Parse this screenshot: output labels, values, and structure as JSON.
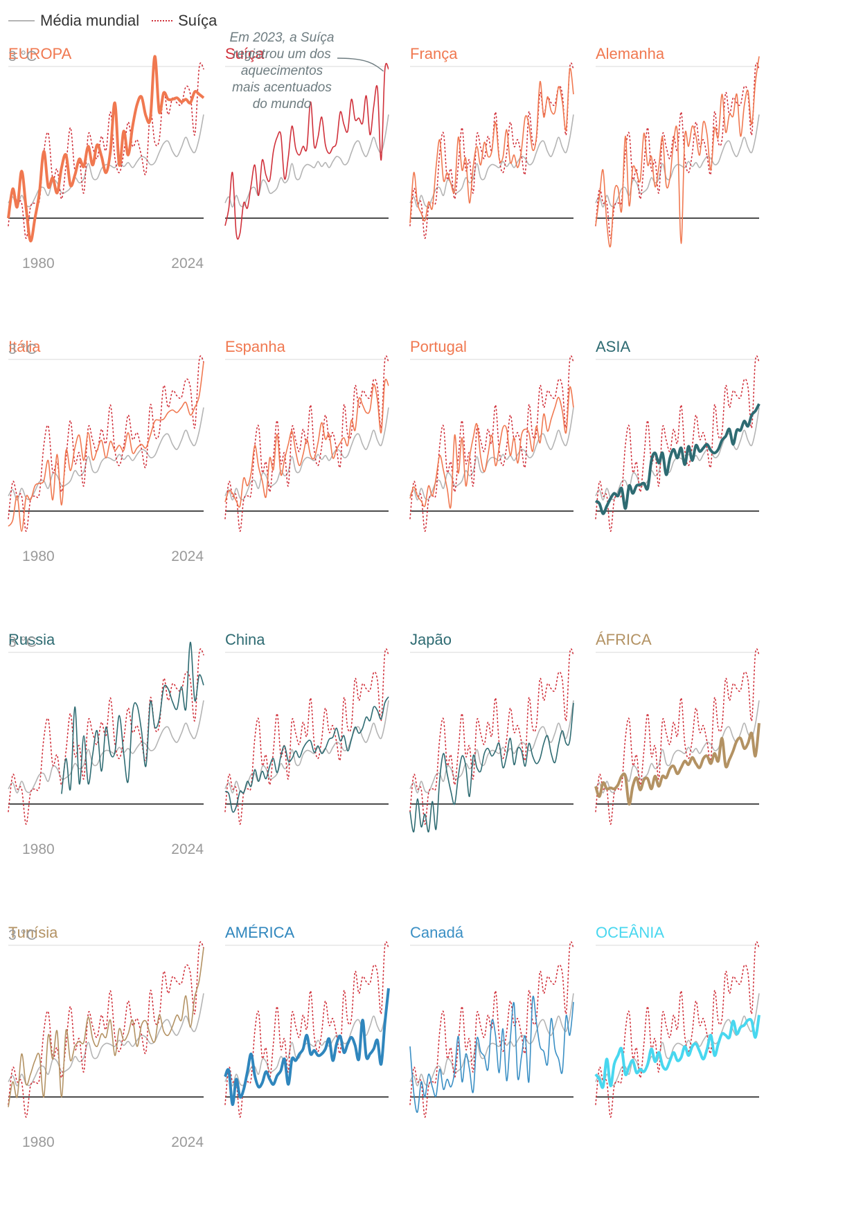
{
  "legend": {
    "world_label": "Média mundial",
    "swiss_label": "Suíça",
    "world_color": "#b4b4b4",
    "swiss_color": "#d0303a"
  },
  "colors": {
    "europe": "#f07850",
    "swiss": "#d0303a",
    "asia": "#2e6b72",
    "africa": "#b39263",
    "america": "#2f86bd",
    "canada": "#3a8fc4",
    "oceania": "#48d7ef",
    "zero_line": "#111111",
    "grid_line": "#d9d9d9"
  },
  "axis": {
    "y_label": "3 °C",
    "x_start": "1980",
    "x_end": "2024"
  },
  "annotation": {
    "lines": [
      "Em 2023, a Suíça",
      "registrou um dos",
      "aquecimentos",
      "mais acentuados",
      "do mundo"
    ]
  },
  "chart_data": {
    "type": "line",
    "x_range": [
      1979,
      2024
    ],
    "ylim": [
      -0.6,
      3.2
    ],
    "ylabel": "3 °C",
    "world_mean": [
      0.3,
      0.42,
      0.22,
      0.45,
      0.26,
      0.24,
      0.4,
      0.58,
      0.6,
      0.45,
      0.74,
      0.7,
      0.5,
      0.52,
      0.6,
      0.8,
      0.7,
      0.78,
      1.08,
      0.8,
      0.78,
      0.98,
      1.06,
      1.04,
      1.0,
      1.12,
      1.02,
      1.1,
      1.0,
      1.12,
      1.22,
      1.18,
      1.06,
      1.1,
      1.3,
      1.48,
      1.52,
      1.32,
      1.22,
      1.4,
      1.6,
      1.4,
      1.3,
      1.58,
      2.05
    ],
    "swiss": [
      -0.15,
      0.58,
      0.3,
      0.3,
      -0.4,
      0.22,
      0.3,
      0.35,
      1.3,
      1.68,
      0.78,
      0.97,
      0.38,
      1.05,
      1.79,
      0.95,
      1.15,
      0.5,
      1.65,
      1.4,
      1.18,
      1.62,
      1.34,
      2.1,
      1.2,
      0.9,
      1.28,
      1.9,
      1.42,
      1.55,
      1.23,
      0.89,
      2.1,
      1.5,
      1.55,
      2.48,
      2.05,
      2.38,
      2.28,
      2.25,
      2.6,
      2.45,
      1.65,
      2.98,
      2.95
    ],
    "series": [
      {
        "name": "EUROPA",
        "color_key": "europe",
        "thick": true,
        "values": [
          0.0,
          0.58,
          0.22,
          0.93,
          0.21,
          -0.45,
          0.0,
          0.5,
          1.32,
          0.62,
          0.8,
          0.5,
          1.0,
          1.25,
          0.65,
          0.85,
          1.17,
          1.02,
          1.42,
          1.05,
          1.45,
          1.22,
          0.9,
          1.32,
          2.28,
          1.05,
          1.72,
          1.25,
          1.82,
          2.25,
          2.4,
          2.02,
          1.98,
          3.2,
          2.1,
          2.48,
          2.35,
          2.35,
          2.38,
          2.3,
          2.35,
          2.28,
          2.5,
          2.45,
          2.38
        ]
      },
      {
        "name": "Suíça",
        "color_key": "swiss",
        "thick": false,
        "values": [
          -0.15,
          0.2,
          0.9,
          -0.3,
          -0.3,
          0.3,
          0.2,
          0.65,
          1.05,
          0.45,
          1.15,
          0.85,
          0.75,
          1.32,
          1.6,
          1.65,
          0.78,
          1.2,
          1.82,
          1.38,
          1.25,
          1.42,
          1.38,
          2.3,
          1.42,
          1.6,
          2.0,
          1.45,
          1.28,
          1.4,
          1.5,
          2.1,
          1.85,
          1.72,
          2.35,
          1.95,
          1.98,
          1.88,
          2.42,
          1.65,
          2.2,
          2.58,
          1.15,
          2.92,
          2.95
        ]
      },
      {
        "name": "França",
        "color_key": "europe",
        "thick": false,
        "values": [
          -0.1,
          0.9,
          0.3,
          0.1,
          -0.05,
          0.32,
          0.2,
          1.0,
          1.55,
          0.75,
          0.9,
          0.68,
          0.55,
          1.6,
          0.95,
          1.18,
          0.3,
          1.02,
          1.42,
          1.05,
          1.5,
          1.22,
          1.32,
          1.9,
          1.18,
          1.2,
          1.75,
          1.1,
          1.25,
          1.0,
          1.35,
          2.0,
          1.85,
          1.35,
          1.6,
          2.7,
          2.0,
          2.4,
          2.12,
          2.1,
          2.6,
          2.3,
          1.75,
          2.95,
          2.45
        ]
      },
      {
        "name": "Alemanha",
        "color_key": "europe",
        "thick": false,
        "values": [
          -0.15,
          0.42,
          0.95,
          -0.1,
          -0.55,
          0.5,
          0.6,
          0.15,
          1.62,
          0.25,
          1.0,
          0.9,
          0.75,
          1.68,
          1.05,
          1.22,
          0.62,
          1.02,
          1.6,
          0.65,
          0.8,
          1.52,
          1.68,
          -0.5,
          1.62,
          1.42,
          1.82,
          1.62,
          1.25,
          1.9,
          1.65,
          0.95,
          1.78,
          1.6,
          2.45,
          1.7,
          2.05,
          2.02,
          2.45,
          1.62,
          2.22,
          2.52,
          1.85,
          2.68,
          3.2
        ]
      },
      {
        "name": "Itália",
        "color_key": "europe",
        "thick": false,
        "values": [
          -0.3,
          -0.18,
          0.3,
          -0.4,
          0.28,
          0.22,
          0.5,
          0.55,
          0.6,
          1.0,
          0.22,
          1.12,
          0.12,
          1.2,
          0.8,
          1.25,
          1.5,
          1.0,
          1.55,
          1.02,
          1.2,
          1.4,
          1.05,
          1.38,
          1.2,
          1.3,
          1.2,
          1.55,
          1.15,
          1.25,
          1.32,
          1.25,
          1.5,
          1.78,
          1.8,
          1.82,
          1.95,
          2.0,
          1.95,
          2.05,
          2.15,
          1.9,
          2.05,
          2.28,
          2.95
        ]
      },
      {
        "name": "Espanha",
        "color_key": "europe",
        "thick": false,
        "values": [
          0.18,
          0.4,
          0.35,
          0.2,
          0.1,
          0.65,
          0.5,
          0.75,
          1.3,
          0.88,
          0.6,
          0.28,
          1.05,
          0.82,
          1.52,
          0.72,
          1.02,
          1.32,
          1.58,
          1.18,
          0.9,
          1.12,
          1.42,
          1.1,
          1.05,
          1.35,
          1.75,
          1.42,
          1.52,
          1.05,
          1.22,
          1.35,
          1.45,
          1.3,
          1.8,
          1.6,
          2.22,
          2.1,
          1.95,
          2.0,
          2.5,
          2.2,
          1.55,
          2.55,
          2.48
        ]
      },
      {
        "name": "Portugal",
        "color_key": "europe",
        "thick": false,
        "values": [
          0.25,
          0.48,
          0.3,
          0.2,
          0.1,
          0.5,
          0.3,
          0.65,
          1.1,
          0.8,
          0.45,
          0.1,
          1.5,
          0.75,
          1.45,
          0.5,
          1.05,
          1.45,
          1.72,
          1.08,
          0.78,
          1.12,
          1.5,
          0.9,
          1.25,
          1.65,
          1.62,
          1.1,
          1.45,
          0.95,
          1.5,
          1.62,
          1.55,
          1.18,
          1.68,
          1.35,
          1.92,
          1.58,
          1.82,
          2.05,
          2.25,
          1.98,
          1.55,
          2.45,
          2.05
        ]
      },
      {
        "name": "ASIA",
        "color_key": "asia",
        "thick": true,
        "values": [
          0.2,
          0.15,
          -0.05,
          0.1,
          0.25,
          0.35,
          0.3,
          0.45,
          0.05,
          0.5,
          0.35,
          0.5,
          0.52,
          0.55,
          0.45,
          1.0,
          1.15,
          0.95,
          1.15,
          0.72,
          1.05,
          1.22,
          1.05,
          1.25,
          0.92,
          1.28,
          1.0,
          1.3,
          1.18,
          1.25,
          1.32,
          1.2,
          1.15,
          1.22,
          1.4,
          1.48,
          1.62,
          1.32,
          1.6,
          1.6,
          1.78,
          1.68,
          1.9,
          1.98,
          2.12
        ]
      },
      {
        "name": "Russia",
        "color_key": "asia",
        "thick": false,
        "values": [
          null,
          null,
          null,
          null,
          null,
          null,
          null,
          null,
          null,
          null,
          null,
          null,
          0.2,
          0.9,
          0.3,
          1.92,
          0.4,
          1.35,
          0.4,
          0.98,
          1.45,
          0.65,
          1.52,
          1.0,
          1.02,
          1.75,
          1.0,
          0.45,
          1.82,
          1.95,
          1.45,
          0.75,
          2.02,
          1.52,
          1.68,
          2.3,
          2.28,
          2.02,
          1.88,
          2.32,
          1.88,
          3.2,
          2.05,
          2.55,
          2.35
        ]
      },
      {
        "name": "China",
        "color_key": "asia",
        "thick": false,
        "values": [
          0.25,
          0.2,
          -0.15,
          -0.05,
          0.25,
          0.22,
          0.45,
          0.35,
          0.68,
          0.45,
          0.65,
          0.5,
          0.75,
          0.9,
          0.62,
          0.95,
          1.15,
          0.85,
          0.9,
          1.05,
          0.92,
          1.1,
          1.22,
          1.25,
          1.02,
          1.15,
          1.0,
          1.1,
          1.28,
          1.32,
          1.5,
          1.25,
          1.35,
          1.05,
          1.28,
          1.52,
          1.4,
          1.5,
          1.72,
          1.65,
          1.92,
          1.85,
          1.68,
          2.0,
          2.12
        ]
      },
      {
        "name": "Japão",
        "color_key": "asia",
        "thick": false,
        "values": [
          -0.15,
          -0.55,
          0.1,
          -0.45,
          -0.2,
          -0.55,
          0.05,
          -0.5,
          0.5,
          1.0,
          0.6,
          0.25,
          0.0,
          0.55,
          0.95,
          0.75,
          0.15,
          0.95,
          0.72,
          0.65,
          1.0,
          1.1,
          0.95,
          1.05,
          1.2,
          0.72,
          0.95,
          1.3,
          0.78,
          1.1,
          1.05,
          0.75,
          1.2,
          0.95,
          0.8,
          0.9,
          1.2,
          1.35,
          1.0,
          0.82,
          1.18,
          1.45,
          1.2,
          1.25,
          2.0
        ]
      },
      {
        "name": "ÁFRICA",
        "color_key": "africa",
        "thick": true,
        "values": [
          0.35,
          0.15,
          0.42,
          0.3,
          0.32,
          0.3,
          0.38,
          0.55,
          0.55,
          0.0,
          0.35,
          0.52,
          0.28,
          0.48,
          0.5,
          0.3,
          0.55,
          0.35,
          0.55,
          0.52,
          0.7,
          0.75,
          0.6,
          0.72,
          0.85,
          0.78,
          0.92,
          0.8,
          0.72,
          0.9,
          0.95,
          0.8,
          1.0,
          0.85,
          1.3,
          0.75,
          0.88,
          1.05,
          1.25,
          1.3,
          1.1,
          1.2,
          1.4,
          0.95,
          1.6
        ]
      },
      {
        "name": "Tunísia",
        "color_key": "africa",
        "thick": false,
        "values": [
          -0.2,
          0.3,
          0.0,
          0.85,
          0.25,
          0.45,
          0.72,
          0.82,
          0.0,
          1.22,
          0.75,
          1.3,
          0.0,
          1.32,
          0.72,
          1.0,
          1.1,
          1.08,
          1.58,
          1.15,
          1.0,
          1.25,
          1.18,
          1.52,
          0.82,
          1.35,
          1.12,
          1.25,
          1.52,
          1.0,
          1.42,
          1.5,
          1.22,
          1.1,
          1.62,
          1.3,
          1.22,
          1.4,
          1.62,
          1.52,
          2.0,
          1.38,
          1.98,
          2.3,
          2.95
        ]
      },
      {
        "name": "AMÉRICA",
        "color_key": "america",
        "thick": true,
        "values": [
          0.4,
          0.52,
          -0.15,
          0.35,
          0.0,
          0.15,
          0.5,
          0.85,
          0.42,
          0.2,
          0.28,
          0.5,
          0.35,
          0.25,
          0.42,
          0.52,
          0.75,
          0.25,
          0.75,
          0.72,
          0.85,
          0.95,
          1.22,
          0.85,
          0.92,
          0.82,
          0.85,
          0.95,
          1.15,
          0.72,
          1.05,
          1.2,
          0.88,
          1.05,
          1.18,
          1.02,
          0.75,
          1.52,
          0.8,
          0.85,
          0.95,
          1.12,
          0.65,
          1.45,
          2.15
        ]
      },
      {
        "name": "Canadá",
        "color_key": "canada",
        "thick": false,
        "values": [
          1.0,
          0.08,
          -0.3,
          0.3,
          0.0,
          0.45,
          0.2,
          0.02,
          0.55,
          0.15,
          0.35,
          0.2,
          0.5,
          1.2,
          0.3,
          0.85,
          0.55,
          0.1,
          1.15,
          0.9,
          0.8,
          0.55,
          1.5,
          1.22,
          0.48,
          1.35,
          0.32,
          1.15,
          1.85,
          0.38,
          0.8,
          1.2,
          0.3,
          1.95,
          1.48,
          1.0,
          0.9,
          0.65,
          1.55,
          0.95,
          0.75,
          0.5,
          1.6,
          1.22,
          1.88
        ]
      },
      {
        "name": "OCEÂNIA",
        "color_key": "oceania",
        "thick": true,
        "values": [
          0.45,
          0.35,
          0.2,
          0.75,
          0.22,
          0.65,
          0.82,
          0.95,
          0.45,
          0.6,
          0.72,
          0.48,
          0.55,
          0.5,
          0.65,
          0.95,
          0.7,
          0.88,
          0.62,
          0.55,
          0.72,
          0.88,
          0.72,
          0.78,
          1.0,
          0.82,
          1.0,
          1.05,
          0.9,
          0.75,
          0.95,
          1.22,
          0.82,
          1.05,
          1.25,
          1.22,
          1.18,
          1.5,
          1.25,
          1.38,
          1.42,
          1.52,
          1.5,
          1.18,
          1.62
        ]
      }
    ]
  }
}
